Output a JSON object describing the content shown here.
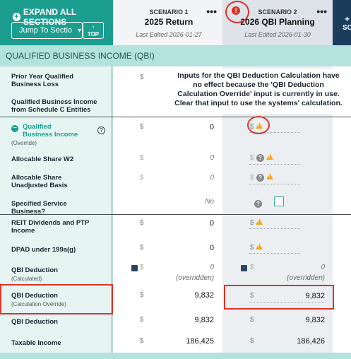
{
  "toolbar": {
    "expand_label": "EXPAND ALL SECTIONS",
    "jump_label": "Jump To Sectio",
    "top_label": "TOP"
  },
  "scenarios": [
    {
      "label": "SCENARIO 1",
      "name": "2025 Return",
      "edited": "Last Edited 2026-01-27"
    },
    {
      "label": "SCENARIO 2",
      "name": "2026 QBI Planning",
      "edited": "Last Edited 2026-01-30"
    }
  ],
  "add_scenario": {
    "plus": "+",
    "label": "SC"
  },
  "section_title": "QUALIFIED BUSINESS INCOME (QBI)",
  "tooltip": "Inputs for the QBI Deduction Calculation have no effect because the 'QBI Deduction Calculation Override' input is currently in use. Clear that input to use the systems' calculation.",
  "rows": {
    "prior_year": {
      "label": "Prior Year Qualified Business Loss",
      "cur1": "$"
    },
    "sched_c": {
      "label": "Qualified Business Income from Schedule C Entities"
    },
    "qbi_override": {
      "label": "Qualified Business Income",
      "sub": "(Override)",
      "cur1": "$",
      "val1": "0",
      "cur2": "$"
    },
    "w2": {
      "label": "Allocable Share W2",
      "cur1": "$",
      "val1": "0",
      "cur2": "$"
    },
    "basis": {
      "label": "Allocable Share Unadjusted Basis",
      "cur1": "$",
      "val1": "0",
      "cur2": "$"
    },
    "sstb": {
      "label": "Specified Service Business?",
      "val1": "No"
    },
    "reit": {
      "label": "REIT Dividends and PTP Income",
      "cur1": "$",
      "val1": "0",
      "cur2": "$"
    },
    "dpad": {
      "label": "DPAD under 199a(g)",
      "cur1": "$",
      "val1": "0",
      "cur2": "$"
    },
    "qbi_calc": {
      "label": "QBI Deduction",
      "sub": "(Calculated)",
      "cur1": "$",
      "val1": "0",
      "ovr1": "(overridden)",
      "cur2": "$",
      "val2": "0",
      "ovr2": "(overridden)"
    },
    "qbi_override_calc": {
      "label": "QBI Deduction",
      "sub": "(Calculation Override)",
      "cur1": "$",
      "val1": "9,832",
      "cur2": "$",
      "val2": "9,832"
    },
    "qbi_ded": {
      "label": "QBI Deduction",
      "cur1": "$",
      "val1": "9,832",
      "cur2": "$",
      "val2": "9,832"
    },
    "taxable": {
      "label": "Taxable Income",
      "cur1": "$",
      "val1": "186,425",
      "cur2": "$",
      "val2": "186,426"
    }
  },
  "icons": {
    "plus": "+",
    "minus": "−",
    "chevron": "▾",
    "top_arrow": "↑",
    "help": "?",
    "alert": "!",
    "dots": "•••",
    "warn": "!"
  },
  "colors": {
    "teal": "#1c9e8f",
    "alert_red": "#d9342b",
    "warning": "#f2a81b",
    "navy": "#1a3d5c"
  }
}
